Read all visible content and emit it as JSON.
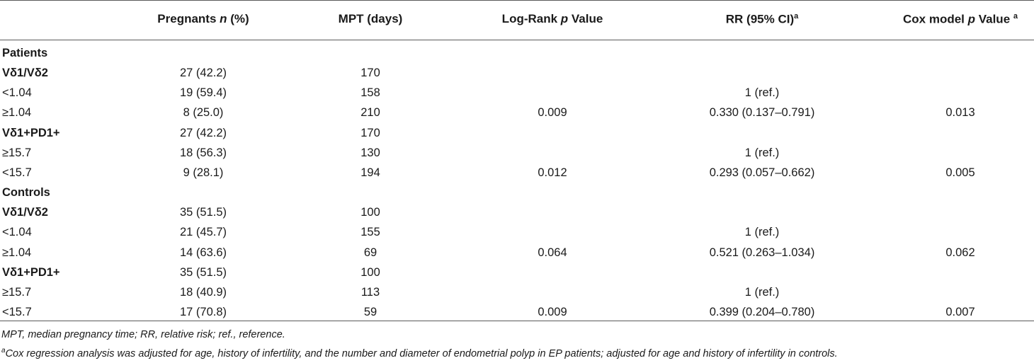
{
  "table": {
    "headers": [
      {
        "before": "Pregnants ",
        "em": "n",
        "after": " (%)",
        "sup": ""
      },
      {
        "before": "MPT (days)",
        "em": "",
        "after": "",
        "sup": ""
      },
      {
        "before": "Log-Rank ",
        "em": "p",
        "after": " Value",
        "sup": ""
      },
      {
        "before": "RR (95% CI)",
        "em": "",
        "after": "",
        "sup": "a"
      },
      {
        "before": "Cox model ",
        "em": "p",
        "after": " Value ",
        "sup": "a"
      }
    ],
    "rows": [
      {
        "label": "Patients",
        "kind": "group",
        "pregnants": "",
        "mpt": "",
        "logrank": "",
        "rr": "",
        "cox": ""
      },
      {
        "label": "Vδ1/Vδ2",
        "kind": "group",
        "pregnants": "27 (42.2)",
        "mpt": "170",
        "logrank": "",
        "rr": "",
        "cox": ""
      },
      {
        "label": "<1.04",
        "kind": "sub",
        "pregnants": "19 (59.4)",
        "mpt": "158",
        "logrank": "",
        "rr": "1 (ref.)",
        "cox": ""
      },
      {
        "label": "≥1.04",
        "kind": "sub",
        "pregnants": "8 (25.0)",
        "mpt": "210",
        "logrank": "0.009",
        "rr": "0.330 (0.137–0.791)",
        "cox": "0.013"
      },
      {
        "label": "Vδ1+PD1+",
        "kind": "group",
        "pregnants": "27 (42.2)",
        "mpt": "170",
        "logrank": "",
        "rr": "",
        "cox": ""
      },
      {
        "label": "≥15.7",
        "kind": "sub",
        "pregnants": "18 (56.3)",
        "mpt": "130",
        "logrank": "",
        "rr": "1 (ref.)",
        "cox": ""
      },
      {
        "label": "<15.7",
        "kind": "sub",
        "pregnants": "9 (28.1)",
        "mpt": "194",
        "logrank": "0.012",
        "rr": "0.293 (0.057–0.662)",
        "cox": "0.005"
      },
      {
        "label": "Controls",
        "kind": "group",
        "pregnants": "",
        "mpt": "",
        "logrank": "",
        "rr": "",
        "cox": ""
      },
      {
        "label": "Vδ1/Vδ2",
        "kind": "group",
        "pregnants": "35 (51.5)",
        "mpt": "100",
        "logrank": "",
        "rr": "",
        "cox": ""
      },
      {
        "label": "<1.04",
        "kind": "sub",
        "pregnants": "21 (45.7)",
        "mpt": "155",
        "logrank": "",
        "rr": "1 (ref.)",
        "cox": ""
      },
      {
        "label": "≥1.04",
        "kind": "sub",
        "pregnants": "14 (63.6)",
        "mpt": "69",
        "logrank": "0.064",
        "rr": "0.521 (0.263–1.034)",
        "cox": "0.062"
      },
      {
        "label": "Vδ1+PD1+",
        "kind": "group",
        "pregnants": "35 (51.5)",
        "mpt": "100",
        "logrank": "",
        "rr": "",
        "cox": ""
      },
      {
        "label": "≥15.7",
        "kind": "sub",
        "pregnants": "18 (40.9)",
        "mpt": "113",
        "logrank": "",
        "rr": "1 (ref.)",
        "cox": ""
      },
      {
        "label": "<15.7",
        "kind": "sub",
        "pregnants": "17 (70.8)",
        "mpt": "59",
        "logrank": "0.009",
        "rr": "0.399 (0.204–0.780)",
        "cox": "0.007"
      }
    ]
  },
  "footnotes": {
    "abbrev": "MPT, median pregnancy time; RR, relative risk; ref., reference.",
    "a_marker": "a",
    "a_text": "Cox regression analysis was adjusted for age, history of infertility, and the number and diameter of endometrial polyp in EP patients; adjusted for age and history of infertility in controls."
  }
}
